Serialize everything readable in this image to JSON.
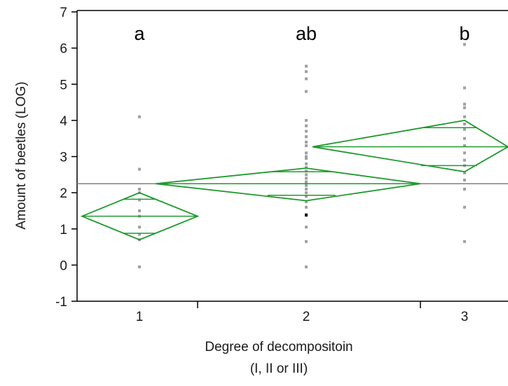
{
  "chart_data": {
    "type": "scatter",
    "title": "",
    "xlabel_lines": [
      "Degree of decompositoin",
      "(I, II or III)"
    ],
    "ylabel": "Amount of beetles (LOG)",
    "ylim": [
      -1,
      7
    ],
    "yticks": [
      "-1",
      "0",
      "1",
      "2",
      "3",
      "4",
      "5",
      "6",
      "7"
    ],
    "categories": [
      "1",
      "2",
      "3"
    ],
    "category_positions": [
      1,
      2,
      3
    ],
    "group_letters": [
      "a",
      "ab",
      "b"
    ],
    "grand_mean": 2.25,
    "diamond_color": "#1f9a2e",
    "point_color": "#a0a0a0",
    "highlight_point_color": "#000000",
    "grand_mean_color": "#808080",
    "means_diamonds": [
      {
        "category": "1",
        "mean": 1.35,
        "lower_ci": 0.7,
        "upper_ci": 2.0,
        "overlap_lower": 0.88,
        "overlap_upper": 1.82
      },
      {
        "category": "2",
        "mean": 2.25,
        "lower_ci": 1.78,
        "upper_ci": 2.68,
        "overlap_lower": 1.93,
        "overlap_upper": 2.58
      },
      {
        "category": "3",
        "mean": 3.27,
        "lower_ci": 2.58,
        "upper_ci": 4.0,
        "overlap_lower": 2.75,
        "overlap_upper": 3.8
      }
    ],
    "points": [
      {
        "category": "1",
        "values": [
          4.1,
          2.65,
          2.1,
          2.0,
          1.8,
          1.5,
          1.35,
          1.05,
          0.85,
          0.7,
          -0.05
        ]
      },
      {
        "category": "2",
        "values": [
          5.5,
          5.35,
          5.15,
          4.8,
          4.0,
          3.85,
          3.7,
          3.55,
          3.4,
          3.3,
          3.1,
          3.0,
          2.95,
          2.8,
          2.7,
          2.6,
          2.5,
          2.4,
          2.3,
          2.2,
          2.1,
          2.0,
          1.9,
          1.75,
          1.6,
          1.4,
          1.05,
          0.65,
          -0.05
        ]
      },
      {
        "category": "3",
        "values": [
          6.1,
          4.9,
          4.45,
          4.35,
          4.1,
          3.9,
          3.75,
          3.5,
          3.3,
          3.1,
          2.9,
          2.75,
          2.55,
          2.35,
          2.1,
          1.6,
          0.65
        ]
      }
    ],
    "highlight_points": [
      {
        "category": "2",
        "value": 1.38
      }
    ]
  }
}
